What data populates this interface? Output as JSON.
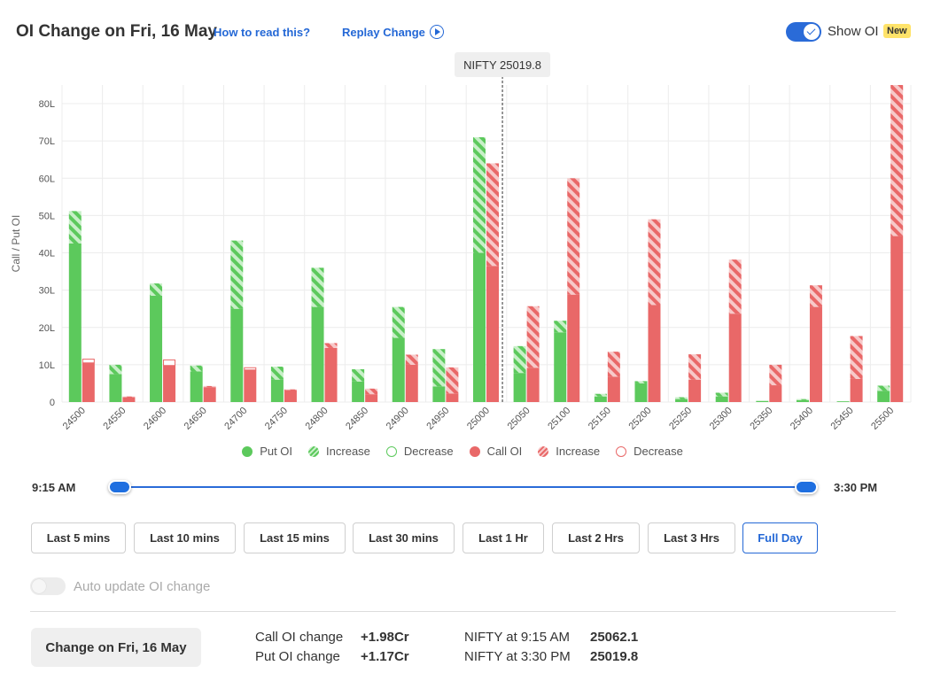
{
  "header": {
    "title": "OI Change on Fri, 16 May",
    "how_to_read": "How to read this?",
    "replay": "Replay Change",
    "show_oi_label": "Show OI",
    "new_badge": "New"
  },
  "colors": {
    "put": "#5cc95c",
    "put_light": "#c8efc8",
    "call": "#e96868",
    "call_light": "#f7c9c9",
    "accent": "#2468d6"
  },
  "chart_data": {
    "type": "bar",
    "ylabel": "Call / Put OI",
    "ylim": [
      0,
      85
    ],
    "yticks": [
      0,
      10,
      20,
      30,
      40,
      50,
      60,
      70,
      80
    ],
    "ytick_labels": [
      "0",
      "10L",
      "20L",
      "30L",
      "40L",
      "50L",
      "60L",
      "70L",
      "80L"
    ],
    "grid": true,
    "categories": [
      "24500",
      "24550",
      "24600",
      "24650",
      "24700",
      "24750",
      "24800",
      "24850",
      "24900",
      "24950",
      "25000",
      "25050",
      "25100",
      "25150",
      "25200",
      "25250",
      "25300",
      "25350",
      "25400",
      "25450",
      "25500"
    ],
    "series": [
      {
        "name": "Put OI",
        "values": [
          42.5,
          7.5,
          28.5,
          8.2,
          25,
          6,
          25.5,
          5.5,
          17.2,
          4.2,
          40,
          7.8,
          18.7,
          1.5,
          5,
          0.8,
          1.5,
          0.3,
          0.5,
          0.2,
          3
        ]
      },
      {
        "name": "Put OI Increase",
        "values": [
          8.7,
          2.5,
          3.3,
          1.6,
          18.3,
          3.5,
          10.5,
          3.3,
          8.3,
          10,
          31,
          7.2,
          3.1,
          0.7,
          0.6,
          0.5,
          1,
          0,
          0.3,
          0,
          1.4
        ]
      },
      {
        "name": "Put OI Decrease",
        "values": [
          0,
          0,
          0,
          0,
          0,
          0,
          0,
          0,
          0,
          0,
          0,
          0,
          0,
          0,
          0,
          0,
          0,
          0,
          0,
          0,
          0
        ]
      },
      {
        "name": "Call OI",
        "values": [
          10.5,
          1.3,
          9.8,
          4,
          8.6,
          3.2,
          14.5,
          2.1,
          10,
          2.3,
          36.5,
          9.2,
          28.8,
          6.8,
          26,
          6,
          23.7,
          4.5,
          25.5,
          6.2,
          44.5
        ]
      },
      {
        "name": "Call OI Increase",
        "values": [
          0,
          0.2,
          0,
          0.3,
          0,
          0.2,
          1.3,
          1.5,
          2.7,
          7,
          27.5,
          16.5,
          31.2,
          6.7,
          23,
          6.8,
          14.5,
          5.5,
          5.8,
          11.5,
          40.5
        ]
      },
      {
        "name": "Call OI Decrease",
        "values": [
          1,
          0,
          1.5,
          0,
          0.6,
          0,
          0,
          0,
          0,
          0,
          0,
          0,
          0,
          0,
          0,
          0,
          0,
          0,
          0,
          0,
          0
        ]
      }
    ],
    "spot_label": "NIFTY 25019.8",
    "spot_value": 25019.8
  },
  "legend": {
    "put_oi": "Put OI",
    "put_increase": "Increase",
    "put_decrease": "Decrease",
    "call_oi": "Call OI",
    "call_increase": "Increase",
    "call_decrease": "Decrease"
  },
  "slider": {
    "start_label": "9:15 AM",
    "end_label": "3:30 PM"
  },
  "ranges": {
    "items": [
      "Last 5 mins",
      "Last 10 mins",
      "Last 15 mins",
      "Last 30 mins",
      "Last 1 Hr",
      "Last 2 Hrs",
      "Last 3 Hrs",
      "Full Day"
    ],
    "selected": "Full Day"
  },
  "auto_update_label": "Auto update OI change",
  "footer": {
    "change_button": "Change on Fri, 16 May",
    "call_change_label": "Call OI change",
    "call_change_value": "+1.98Cr",
    "put_change_label": "Put OI change",
    "put_change_value": "+1.17Cr",
    "nifty_start_label": "NIFTY at 9:15 AM",
    "nifty_start_value": "25062.1",
    "nifty_end_label": "NIFTY at 3:30 PM",
    "nifty_end_value": "25019.8"
  }
}
